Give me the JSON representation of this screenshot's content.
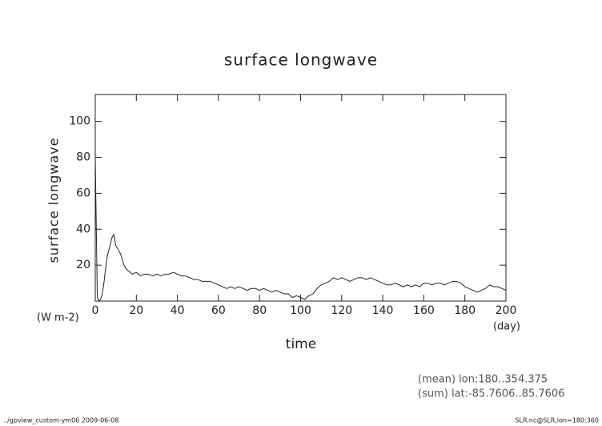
{
  "chart_data": {
    "type": "line",
    "title": "surface longwave",
    "y_label": "surface longwave",
    "x_label": "time",
    "y_units": "(W m-2)",
    "x_units": "(day)",
    "annotations": [
      "(mean) lon:180..354.375",
      "(sum) lat:-85.7606..85.7606"
    ],
    "footer_left": "../gpview_custom-ym06  2009-06-08",
    "footer_right": "SLR.nc@SLR,lon=180:360",
    "color": "#222222",
    "xlim": [
      0,
      200
    ],
    "xticks": [
      0,
      20,
      40,
      60,
      80,
      100,
      120,
      140,
      160,
      180,
      200
    ],
    "ylim": [
      0,
      115
    ],
    "yticks": [
      20,
      40,
      60,
      80,
      100
    ],
    "x": [
      0,
      1,
      2,
      3,
      4,
      5,
      6,
      7,
      8,
      9,
      10,
      11,
      12,
      13,
      14,
      15,
      16,
      18,
      20,
      22,
      24,
      26,
      28,
      30,
      32,
      34,
      36,
      38,
      40,
      42,
      44,
      46,
      48,
      50,
      52,
      54,
      56,
      58,
      60,
      62,
      64,
      66,
      68,
      70,
      72,
      74,
      76,
      78,
      80,
      82,
      84,
      86,
      88,
      90,
      92,
      94,
      96,
      98,
      100,
      102,
      104,
      106,
      108,
      110,
      112,
      114,
      116,
      118,
      120,
      122,
      124,
      126,
      128,
      130,
      132,
      134,
      136,
      138,
      140,
      142,
      144,
      146,
      148,
      150,
      152,
      154,
      156,
      158,
      160,
      162,
      164,
      166,
      168,
      170,
      172,
      174,
      176,
      178,
      180,
      182,
      184,
      186,
      188,
      190,
      192,
      194,
      196,
      198,
      200
    ],
    "values": [
      80,
      2,
      0,
      2,
      8,
      18,
      26,
      30,
      35,
      37,
      31,
      29,
      27,
      24,
      20,
      18,
      17,
      15,
      16,
      14,
      15,
      15,
      14,
      15,
      14,
      15,
      15,
      16,
      15,
      14,
      14,
      13,
      12,
      12,
      11,
      11,
      11,
      10,
      9,
      8,
      7,
      8,
      7,
      8,
      7,
      6,
      7,
      7,
      6,
      7,
      6,
      5,
      6,
      5,
      4,
      4,
      2,
      3,
      2,
      1,
      3,
      4,
      7,
      9,
      10,
      11,
      13,
      12,
      13,
      12,
      11,
      12,
      13,
      13,
      12,
      13,
      12,
      11,
      10,
      9,
      9,
      10,
      9,
      8,
      9,
      8,
      9,
      8,
      10,
      10,
      9,
      10,
      10,
      9,
      10,
      11,
      11,
      10,
      8,
      7,
      6,
      5,
      6,
      7,
      9,
      8,
      8,
      7,
      6
    ]
  }
}
